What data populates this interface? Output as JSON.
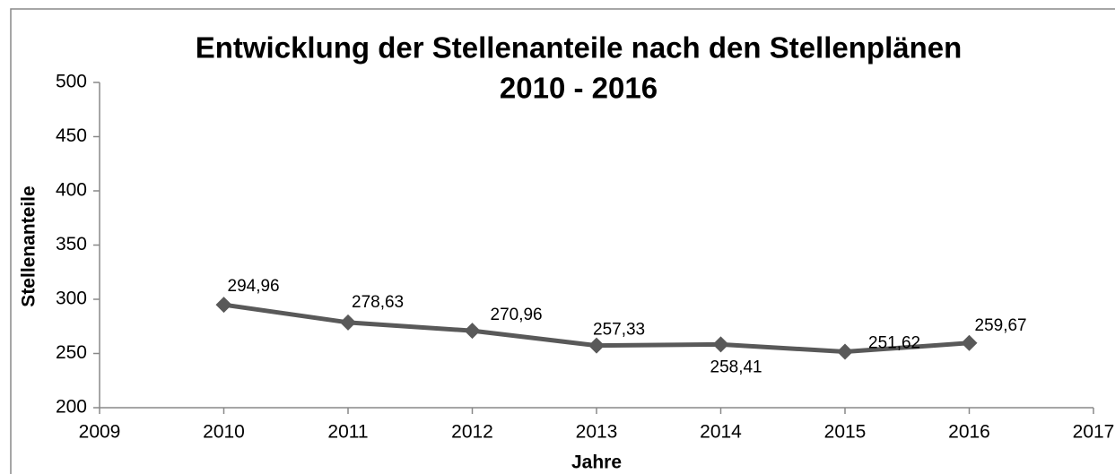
{
  "chart_data": {
    "type": "line",
    "title": [
      "Entwicklung der Stellenanteile nach den Stellenplänen",
      "2010 - 2016"
    ],
    "x_label": "Jahre",
    "y_label": "Stellenanteile",
    "x": [
      2010,
      2011,
      2012,
      2013,
      2014,
      2015,
      2016
    ],
    "series": [
      {
        "color": "#595959",
        "values": [
          294.96,
          278.63,
          270.96,
          257.33,
          258.41,
          251.62,
          259.67
        ],
        "value_labels": [
          "294,96",
          "278,63",
          "270,96",
          "257,33",
          "258,41",
          "251,62",
          "259,67"
        ]
      }
    ],
    "xlim": [
      2009,
      2017
    ],
    "xticks": [
      2009,
      2010,
      2011,
      2012,
      2013,
      2014,
      2015,
      2016,
      2017
    ],
    "ylim": [
      200,
      500
    ],
    "yticks": [
      200,
      250,
      300,
      350,
      400,
      450,
      500
    ],
    "grid": false
  }
}
